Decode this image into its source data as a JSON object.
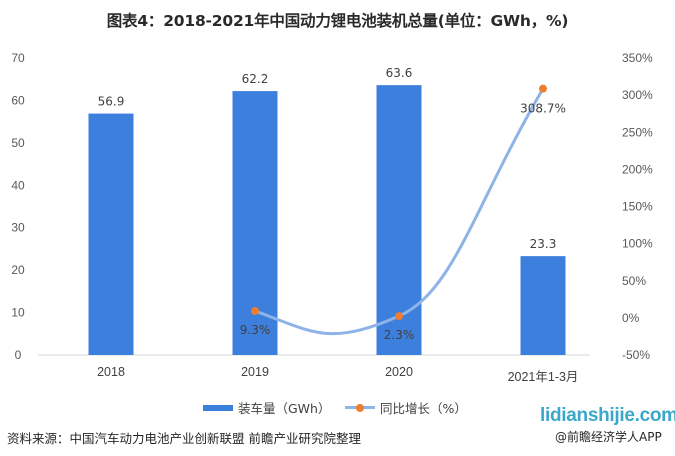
{
  "title": "图表4：2018-2021年中国动力锂电池装机总量(单位：GWh，%)",
  "chart_data": {
    "type": "bar+line",
    "title": "图表4：2018-2021年中国动力锂电池装机总量(单位：GWh，%)",
    "categories": [
      "2018",
      "2019",
      "2020",
      "2021年1-3月"
    ],
    "series": [
      {
        "name": "装车量（GWh）",
        "type": "bar",
        "axis": "left",
        "values": [
          56.9,
          62.2,
          63.6,
          23.3
        ],
        "labels": [
          "56.9",
          "62.2",
          "63.6",
          "23.3"
        ],
        "color": "#3c7fdc"
      },
      {
        "name": "同比增长（%）",
        "type": "line",
        "axis": "right",
        "values": [
          null,
          9.3,
          2.3,
          308.7
        ],
        "labels": [
          "",
          "9.3%",
          "2.3%",
          "308.7%"
        ],
        "color": "#8db3e8",
        "marker_color": "#ed7d31"
      }
    ],
    "left_axis": {
      "ylim": [
        0,
        70
      ],
      "ticks": [
        "0",
        "10",
        "20",
        "30",
        "40",
        "50",
        "60",
        "70"
      ]
    },
    "right_axis": {
      "ylim": [
        -50,
        350
      ],
      "ticks": [
        "-50%",
        "0%",
        "50%",
        "100%",
        "150%",
        "200%",
        "250%",
        "300%",
        "350%"
      ]
    },
    "xlabel": "",
    "ylabel": "",
    "grid": false,
    "legend_position": "bottom"
  },
  "legend": {
    "bar_label": "装车量（GWh）",
    "line_label": "同比增长（%）"
  },
  "footer": {
    "source": "资料来源：中国汽车动力电池产业创新联盟 前瞻产业研究院整理",
    "site": "lidianshijie.com",
    "app": "@前瞻经济学人APP"
  }
}
